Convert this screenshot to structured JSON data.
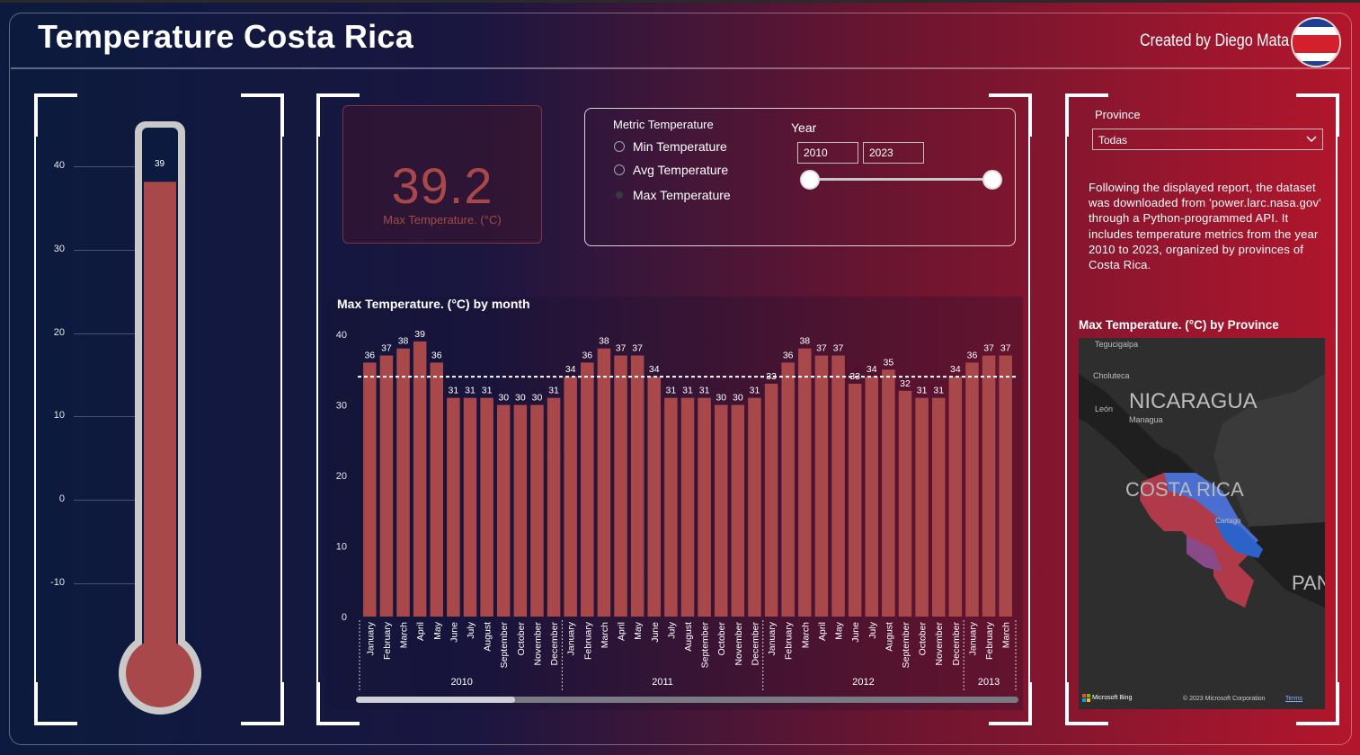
{
  "header": {
    "title": "Temperature Costa Rica",
    "credit": "Created by Diego Mata"
  },
  "colors": {
    "bar": "#a8484a",
    "flag_blue": "#1d3f94",
    "flag_white": "#ffffff",
    "flag_red": "#d3202a"
  },
  "thermometer": {
    "value": 39,
    "value_label": "39",
    "scale_min": -10,
    "scale_max": 40,
    "ticks": [
      "40",
      "30",
      "20",
      "10",
      "0",
      "-10"
    ]
  },
  "card": {
    "value": "39.2",
    "label": "Max Temperature. (°C)"
  },
  "slicer": {
    "title": "Metric Temperature",
    "options": [
      "Min Temperature",
      "Avg Temperature",
      "Max Temperature"
    ],
    "selected": "Max Temperature",
    "year_label": "Year",
    "year_from": "2010",
    "year_to": "2023"
  },
  "province": {
    "label": "Province",
    "selected": "Todas"
  },
  "description": "Following the displayed report, the dataset was downloaded from 'power.larc.nasa.gov' through a Python-programmed API. It includes temperature metrics from the year 2010 to 2023, organized by provinces of Costa Rica.",
  "map": {
    "title": "Max Temperature. (°C) by Province",
    "labels": {
      "tegucigalpa": "Tegucigalpa",
      "choluteca": "Choluteca",
      "nicaragua": "NICARAGUA",
      "leon": "León",
      "managua": "Managua",
      "costa_rica": "COSTA RICA",
      "cartago": "Cartago",
      "panama": "PAN"
    },
    "attribution_left": "Microsoft Bing",
    "attribution_right": "© 2023 Microsoft Corporation",
    "terms": "Terms"
  },
  "chart_data": {
    "type": "bar",
    "title": "Max Temperature. (°C) by month",
    "ylim": [
      0,
      40
    ],
    "yticks": [
      "0",
      "10",
      "20",
      "30",
      "40"
    ],
    "average_line": 34,
    "categories": [
      "January",
      "February",
      "March",
      "April",
      "May",
      "June",
      "July",
      "August",
      "September",
      "October",
      "November",
      "December",
      "January",
      "February",
      "March",
      "April",
      "May",
      "June",
      "July",
      "August",
      "September",
      "October",
      "November",
      "December",
      "January",
      "February",
      "March",
      "April",
      "May",
      "June",
      "July",
      "August",
      "September",
      "October",
      "November",
      "December",
      "January",
      "February",
      "March"
    ],
    "values": [
      36,
      37,
      38,
      39,
      36,
      31,
      31,
      31,
      30,
      30,
      30,
      31,
      34,
      36,
      38,
      37,
      37,
      34,
      31,
      31,
      31,
      30,
      30,
      31,
      33,
      36,
      38,
      37,
      37,
      33,
      34,
      35,
      32,
      31,
      31,
      34,
      36,
      37,
      37
    ],
    "years": [
      {
        "label": "2010",
        "start": 0,
        "count": 12
      },
      {
        "label": "2011",
        "start": 12,
        "count": 12
      },
      {
        "label": "2012",
        "start": 24,
        "count": 12
      },
      {
        "label": "2013",
        "start": 36,
        "count": 3
      }
    ]
  }
}
